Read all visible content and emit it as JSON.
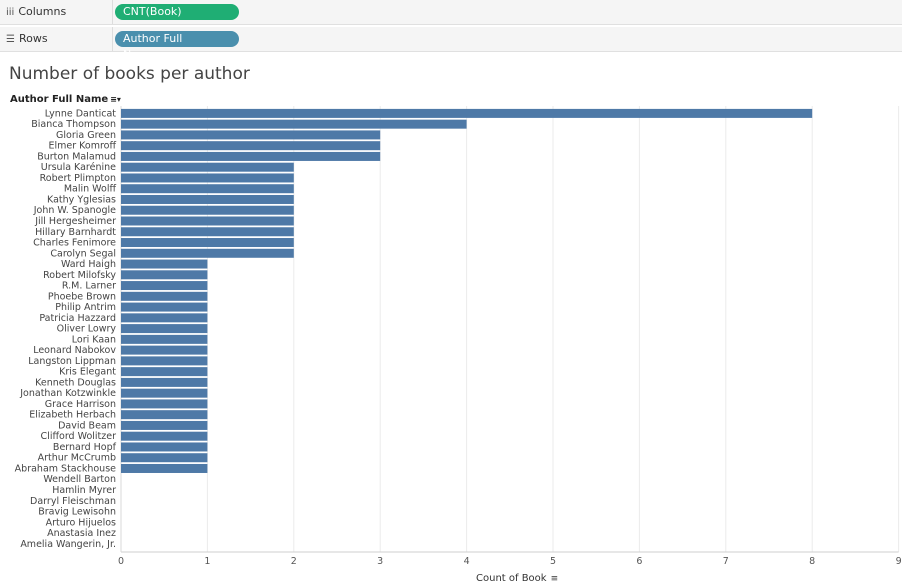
{
  "shelves": {
    "columns": {
      "label": "Columns",
      "icon": "columns-icon",
      "pill": "CNT(Book)",
      "color": "#1fae74"
    },
    "rows": {
      "label": "Rows",
      "icon": "rows-icon",
      "pill": "Author Full Name",
      "color": "#4a8fad"
    }
  },
  "chart_data": {
    "type": "bar",
    "orientation": "horizontal",
    "title": "Number of books per author",
    "ylabel": "Author Full Name",
    "xlabel": "Count of Book",
    "xlim": [
      0,
      9
    ],
    "xticks": [
      0,
      1,
      2,
      3,
      4,
      5,
      6,
      7,
      8,
      9
    ],
    "grid": true,
    "bar_color": "#4e79a7",
    "categories": [
      "Lynne Danticat",
      "Bianca Thompson",
      "Gloria Green",
      "Elmer Komroff",
      "Burton Malamud",
      "Ursula Karénine",
      "Robert Plimpton",
      "Malin Wolff",
      "Kathy Yglesias",
      "John W. Spanogle",
      "Jill Hergesheimer",
      "Hillary Barnhardt",
      "Charles Fenimore",
      "Carolyn Segal",
      "Ward Haigh",
      "Robert Milofsky",
      "R.M. Larner",
      "Phoebe Brown",
      "Philip Antrim",
      "Patricia Hazzard",
      "Oliver Lowry",
      "Lori Kaan",
      "Leonard Nabokov",
      "Langston Lippman",
      "Kris Elegant",
      "Kenneth Douglas",
      "Jonathan Kotzwinkle",
      "Grace Harrison",
      "Elizabeth Herbach",
      "David Beam",
      "Clifford Wolitzer",
      "Bernard Hopf",
      "Arthur McCrumb",
      "Abraham Stackhouse",
      "Wendell Barton",
      "Hamlin Myrer",
      "Darryl Fleischman",
      "Bravig Lewisohn",
      "Arturo Hijuelos",
      "Anastasia Inez",
      "Amelia Wangerin, Jr."
    ],
    "values": [
      8,
      4,
      3,
      3,
      3,
      2,
      2,
      2,
      2,
      2,
      2,
      2,
      2,
      2,
      1,
      1,
      1,
      1,
      1,
      1,
      1,
      1,
      1,
      1,
      1,
      1,
      1,
      1,
      1,
      1,
      1,
      1,
      1,
      1,
      0,
      0,
      0,
      0,
      0,
      0,
      0
    ]
  }
}
